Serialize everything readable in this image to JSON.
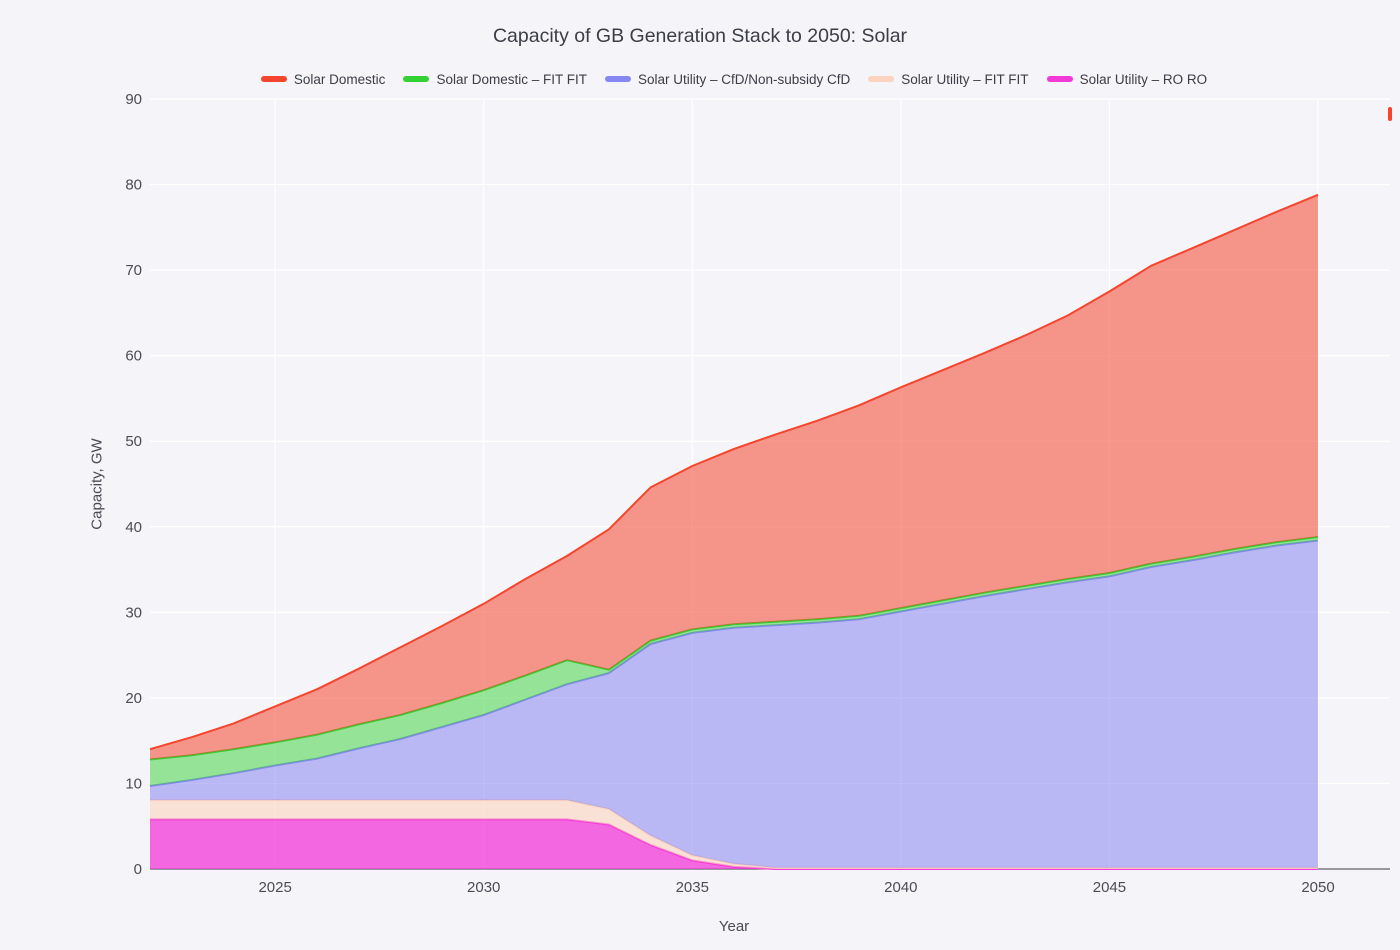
{
  "chart_data": {
    "type": "area",
    "stacked": true,
    "title": "Capacity of GB Generation Stack to 2050: Solar",
    "xlabel": "Year",
    "ylabel": "Capacity, GW",
    "xlim": [
      2022,
      2050
    ],
    "ylim": [
      0,
      90
    ],
    "x_ticks": [
      2025,
      2030,
      2035,
      2040,
      2045,
      2050
    ],
    "y_ticks": [
      0,
      10,
      20,
      30,
      40,
      50,
      60,
      70,
      80,
      90
    ],
    "grid": true,
    "legend_position": "top-center",
    "background_color": "#f5f4f8",
    "x": [
      2022,
      2023,
      2024,
      2025,
      2026,
      2027,
      2028,
      2029,
      2030,
      2031,
      2032,
      2033,
      2034,
      2035,
      2036,
      2037,
      2038,
      2039,
      2040,
      2041,
      2042,
      2043,
      2044,
      2045,
      2046,
      2047,
      2048,
      2049,
      2050
    ],
    "stack_order_bottom_to_top": [
      "Solar Utility – RO RO",
      "Solar Utility – FIT FIT",
      "Solar Utility – CfD/Non-subsidy CfD",
      "Solar Domestic – FIT FIT",
      "Solar Domestic"
    ],
    "series": [
      {
        "name": "Solar Domestic",
        "line": "#f4452e",
        "fill": "rgba(244,69,46,0.55)",
        "values": [
          1.2,
          2.1,
          3.0,
          4.2,
          5.3,
          6.5,
          7.9,
          9.0,
          10.1,
          11.3,
          12.2,
          16.4,
          17.9,
          19.1,
          20.5,
          21.9,
          23.2,
          24.6,
          25.8,
          26.9,
          28.0,
          29.3,
          30.8,
          32.9,
          34.8,
          36.1,
          37.3,
          38.6,
          40.0
        ]
      },
      {
        "name": "Solar Domestic – FIT FIT",
        "line": "#33d133",
        "fill": "rgba(51,209,51,0.5)",
        "values": [
          3.1,
          2.9,
          2.8,
          2.7,
          2.8,
          2.8,
          2.8,
          2.8,
          2.9,
          2.8,
          2.8,
          0.4,
          0.4,
          0.4,
          0.4,
          0.4,
          0.4,
          0.4,
          0.4,
          0.4,
          0.4,
          0.4,
          0.4,
          0.4,
          0.4,
          0.4,
          0.4,
          0.4,
          0.4
        ]
      },
      {
        "name": "Solar Utility – CfD/Non-subsidy CfD",
        "line": "#8787f2",
        "fill": "rgba(135,135,242,0.55)",
        "values": [
          1.65,
          2.35,
          3.15,
          4.05,
          4.85,
          6.05,
          7.15,
          8.55,
          9.95,
          11.75,
          13.55,
          15.9,
          22.4,
          26.0,
          27.6,
          28.35,
          28.65,
          29.05,
          29.95,
          30.85,
          31.75,
          32.55,
          33.35,
          34.05,
          35.15,
          35.95,
          36.85,
          37.65,
          38.25
        ]
      },
      {
        "name": "Solar Utility – FIT FIT",
        "line": "#fcd3bf",
        "fill": "rgba(252,211,191,0.6)",
        "values": [
          2.25,
          2.25,
          2.25,
          2.25,
          2.25,
          2.25,
          2.25,
          2.25,
          2.25,
          2.25,
          2.25,
          1.8,
          1.1,
          0.6,
          0.35,
          0.15,
          0.15,
          0.15,
          0.15,
          0.15,
          0.15,
          0.15,
          0.15,
          0.15,
          0.15,
          0.15,
          0.15,
          0.15,
          0.15
        ]
      },
      {
        "name": "Solar Utility – RO RO",
        "line": "#f23ad8",
        "fill": "rgba(242,58,216,0.75)",
        "values": [
          5.8,
          5.8,
          5.8,
          5.8,
          5.8,
          5.8,
          5.8,
          5.8,
          5.8,
          5.8,
          5.8,
          5.2,
          2.8,
          1.0,
          0.25,
          0,
          0,
          0,
          0,
          0,
          0,
          0,
          0,
          0,
          0,
          0,
          0,
          0,
          0
        ]
      }
    ]
  }
}
